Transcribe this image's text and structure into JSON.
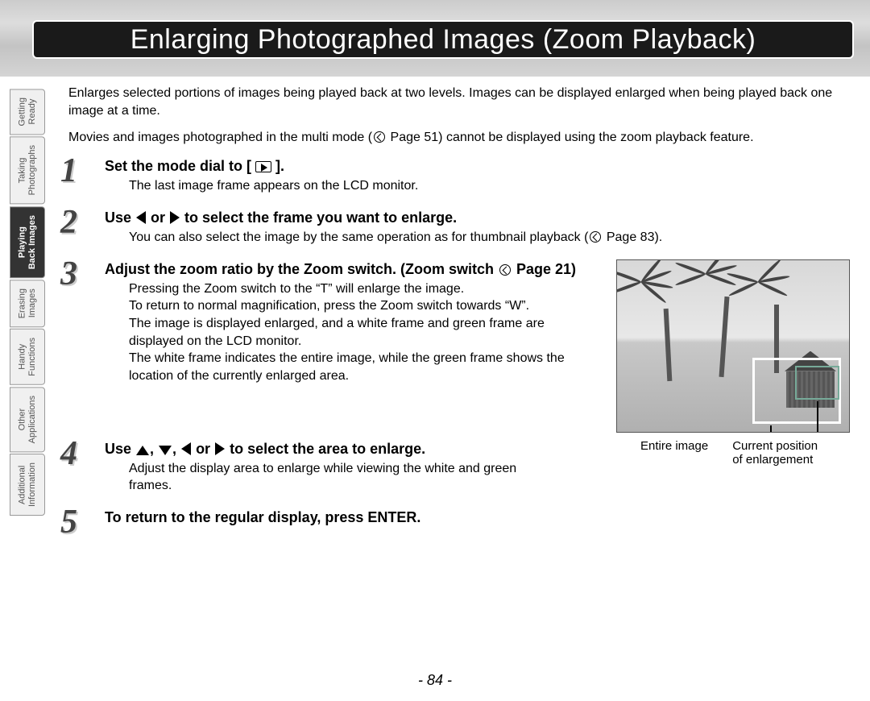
{
  "title": "Enlarging Photographed Images (Zoom Playback)",
  "intro": {
    "p1": "Enlarges selected portions of images being played back at two levels. Images can be displayed enlarged when being played back one image at a time.",
    "p2a": "Movies and images photographed in the multi mode (",
    "p2b": " Page 51) cannot be displayed using the zoom playback feature."
  },
  "tabs": [
    {
      "label": "Getting\nReady",
      "active": false
    },
    {
      "label": "Taking\nPhotographs",
      "active": false
    },
    {
      "label": "Playing\nBack Images",
      "active": true
    },
    {
      "label": "Erasing\nImages",
      "active": false
    },
    {
      "label": "Handy\nFunctions",
      "active": false
    },
    {
      "label": "Other\nApplications",
      "active": false
    },
    {
      "label": "Additional\nInformation",
      "active": false
    }
  ],
  "steps": {
    "s1": {
      "num": "1",
      "title_a": "Set the mode dial to [ ",
      "title_b": " ].",
      "body": "The last image frame appears on the LCD monitor."
    },
    "s2": {
      "num": "2",
      "title_a": "Use ",
      "title_b": " or ",
      "title_c": " to select the frame you want to enlarge.",
      "body_a": "You can also select the image by the same operation as for thumbnail playback (",
      "body_b": " Page 83)."
    },
    "s3": {
      "num": "3",
      "title_a": "Adjust the zoom ratio by the Zoom switch. (Zoom switch ",
      "title_b": " Page 21)",
      "body1": "Pressing the Zoom switch to the “T” will enlarge the image.",
      "body2": "To return to normal magnification, press the Zoom switch towards “W”.",
      "body3": "The image is displayed enlarged, and a white frame and green frame are displayed on the LCD monitor.",
      "body4": "The white frame indicates the entire image, while the green frame shows the location of the currently enlarged area."
    },
    "s4": {
      "num": "4",
      "title_a": "Use ",
      "title_b": ", ",
      "title_c": ", ",
      "title_d": " or ",
      "title_e": " to select the area to enlarge.",
      "body": "Adjust the display area to enlarge while viewing the white and green frames."
    },
    "s5": {
      "num": "5",
      "title": "To return to the regular display, press ENTER."
    }
  },
  "figure": {
    "label_entire": "Entire image",
    "label_current": "Current position of enlargement"
  },
  "page_number": "- 84 -"
}
